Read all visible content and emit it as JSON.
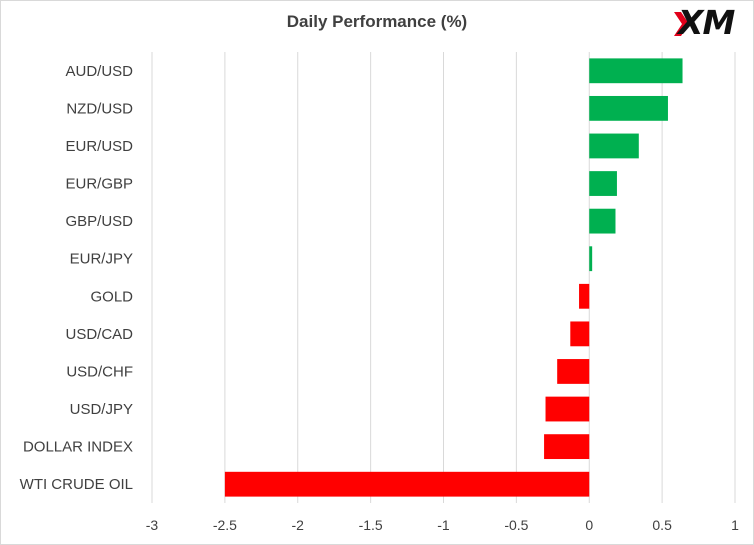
{
  "chart_data": {
    "type": "bar",
    "orientation": "horizontal",
    "title": "Daily Performance (%)",
    "categories": [
      "AUD/USD",
      "NZD/USD",
      "EUR/USD",
      "EUR/GBP",
      "GBP/USD",
      "EUR/JPY",
      "GOLD",
      "USD/CAD",
      "USD/CHF",
      "USD/JPY",
      "DOLLAR INDEX",
      "WTI CRUDE OIL"
    ],
    "values": [
      0.64,
      0.54,
      0.34,
      0.19,
      0.18,
      0.02,
      -0.07,
      -0.13,
      -0.22,
      -0.3,
      -0.31,
      -2.5
    ],
    "xlim": [
      -3,
      1
    ],
    "x_ticks": [
      "-3",
      "-2.5",
      "-2",
      "-1.5",
      "-1",
      "-0.5",
      "0",
      "0.5",
      "1"
    ],
    "grid": true,
    "colors": {
      "positive": "#00b050",
      "negative": "#ff0000",
      "grid": "#d9d9d9"
    }
  },
  "logo": {
    "text": "XM",
    "mark_color": "#e1001a"
  }
}
